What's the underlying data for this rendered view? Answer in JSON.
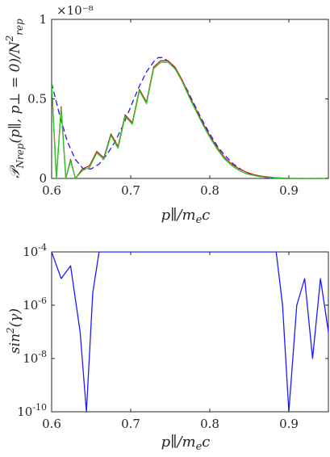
{
  "chart_data": [
    {
      "type": "line",
      "ylabel": "𝒫Nrep(p∥, p⊥ = 0)/N²rep",
      "xlabel": "p∥/mec",
      "xlim": [
        0.6,
        0.95
      ],
      "ylim": [
        0,
        1
      ],
      "y_multiplier": "×10⁻⁸",
      "x_ticks": [
        "0.6",
        "0.7",
        "0.8",
        "0.9"
      ],
      "y_ticks": [
        "0",
        "0.5",
        "1"
      ],
      "grid": false,
      "series": [
        {
          "style": "dashed",
          "color": "#1a1aff",
          "x": [
            0.6,
            0.61,
            0.62,
            0.63,
            0.64,
            0.65,
            0.66,
            0.67,
            0.68,
            0.69,
            0.7,
            0.71,
            0.72,
            0.73,
            0.735,
            0.74,
            0.75,
            0.76,
            0.77,
            0.78,
            0.79,
            0.8,
            0.81,
            0.82,
            0.83,
            0.84,
            0.85,
            0.86,
            0.87,
            0.88,
            0.89,
            0.9,
            0.95
          ],
          "y": [
            0.6,
            0.4,
            0.23,
            0.12,
            0.06,
            0.06,
            0.09,
            0.15,
            0.23,
            0.33,
            0.45,
            0.57,
            0.67,
            0.74,
            0.76,
            0.76,
            0.73,
            0.66,
            0.57,
            0.47,
            0.37,
            0.28,
            0.2,
            0.14,
            0.09,
            0.055,
            0.03,
            0.015,
            0.007,
            0.003,
            0.001,
            0.0,
            0.0
          ]
        },
        {
          "style": "solid",
          "color": "#d11f1f",
          "x": [
            0.6,
            0.606,
            0.612,
            0.618,
            0.624,
            0.63,
            0.639,
            0.648,
            0.657,
            0.666,
            0.675,
            0.684,
            0.693,
            0.702,
            0.711,
            0.72,
            0.729,
            0.738,
            0.747,
            0.756,
            0.765,
            0.774,
            0.783,
            0.792,
            0.801,
            0.81,
            0.819,
            0.828,
            0.837,
            0.846,
            0.855,
            0.864,
            0.873,
            0.882,
            0.891,
            0.9,
            0.95
          ],
          "y": [
            0.6,
            0.0,
            0.45,
            0.0,
            0.12,
            0.0,
            0.06,
            0.08,
            0.17,
            0.13,
            0.28,
            0.2,
            0.4,
            0.35,
            0.56,
            0.48,
            0.7,
            0.74,
            0.74,
            0.7,
            0.62,
            0.52,
            0.43,
            0.34,
            0.26,
            0.19,
            0.13,
            0.09,
            0.06,
            0.04,
            0.025,
            0.015,
            0.01,
            0.005,
            0.003,
            0.0,
            0.0
          ]
        },
        {
          "style": "solid",
          "color": "#22cc22",
          "x": [
            0.6,
            0.606,
            0.612,
            0.618,
            0.624,
            0.63,
            0.639,
            0.648,
            0.657,
            0.666,
            0.675,
            0.684,
            0.693,
            0.702,
            0.711,
            0.72,
            0.729,
            0.738,
            0.747,
            0.756,
            0.765,
            0.774,
            0.783,
            0.792,
            0.801,
            0.81,
            0.819,
            0.828,
            0.837,
            0.846,
            0.855,
            0.864,
            0.873,
            0.882,
            0.891,
            0.9,
            0.95
          ],
          "y": [
            0.6,
            0.0,
            0.44,
            0.0,
            0.11,
            0.0,
            0.05,
            0.07,
            0.16,
            0.12,
            0.27,
            0.19,
            0.39,
            0.34,
            0.55,
            0.47,
            0.69,
            0.73,
            0.73,
            0.69,
            0.61,
            0.51,
            0.42,
            0.33,
            0.25,
            0.18,
            0.12,
            0.08,
            0.05,
            0.03,
            0.02,
            0.01,
            0.008,
            0.004,
            0.002,
            0.0,
            0.0
          ]
        }
      ]
    },
    {
      "type": "line",
      "ylabel": "sin²(γ)",
      "xlabel": "p∥/mec",
      "xlim": [
        0.6,
        0.95
      ],
      "ylim": [
        1e-10,
        0.0001
      ],
      "yscale": "log",
      "x_ticks": [
        "0.6",
        "0.7",
        "0.8",
        "0.9"
      ],
      "y_ticks": [
        "10-10",
        "10-8",
        "10-6",
        "10-4"
      ],
      "grid": false,
      "series": [
        {
          "style": "solid",
          "color": "#1a1aff",
          "x": [
            0.6,
            0.612,
            0.624,
            0.636,
            0.644,
            0.652,
            0.66,
            0.668,
            0.676,
            0.684,
            0.692,
            0.7,
            0.708,
            0.716,
            0.724,
            0.732,
            0.74,
            0.748,
            0.756,
            0.764,
            0.772,
            0.78,
            0.788,
            0.796,
            0.804,
            0.812,
            0.82,
            0.828,
            0.836,
            0.844,
            0.852,
            0.86,
            0.868,
            0.876,
            0.884,
            0.892,
            0.9,
            0.91,
            0.92,
            0.93,
            0.94,
            0.95
          ],
          "y": [
            0.0001,
            1e-05,
            3e-05,
            1e-07,
            1e-10,
            3e-06,
            0.0001,
            0.0001,
            0.0001,
            0.0001,
            0.0001,
            0.0001,
            0.0001,
            0.0001,
            0.0001,
            0.0001,
            0.0001,
            0.0001,
            0.0001,
            0.0001,
            0.0001,
            0.0001,
            0.0001,
            0.0001,
            0.0001,
            0.0001,
            0.0001,
            0.0001,
            0.0001,
            0.0001,
            0.0001,
            0.0001,
            0.0001,
            0.0001,
            0.0001,
            1e-06,
            1e-10,
            1e-06,
            1e-05,
            1e-08,
            1e-05,
            1e-07
          ]
        }
      ]
    }
  ]
}
